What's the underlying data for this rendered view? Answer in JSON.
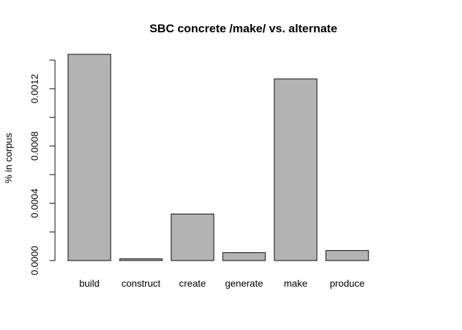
{
  "chart_data": {
    "type": "bar",
    "title": "SBC concrete /make/ vs. alternate",
    "xlabel": "",
    "ylabel": "% in corpus",
    "categories": [
      "build",
      "construct",
      "create",
      "generate",
      "make",
      "produce"
    ],
    "values": [
      0.00144,
      1.2e-05,
      0.000325,
      5.5e-05,
      0.001268,
      7e-05
    ],
    "ylim": [
      0,
      0.0014
    ],
    "yticks": [
      0,
      0.0004,
      0.0008,
      0.0012
    ],
    "ytick_labels": [
      "0.0000",
      "0.0004",
      "0.0008",
      "0.0012"
    ],
    "grid": false,
    "legend": "none",
    "bar_color": "#b3b3b3",
    "bar_border_color": "#000000"
  }
}
